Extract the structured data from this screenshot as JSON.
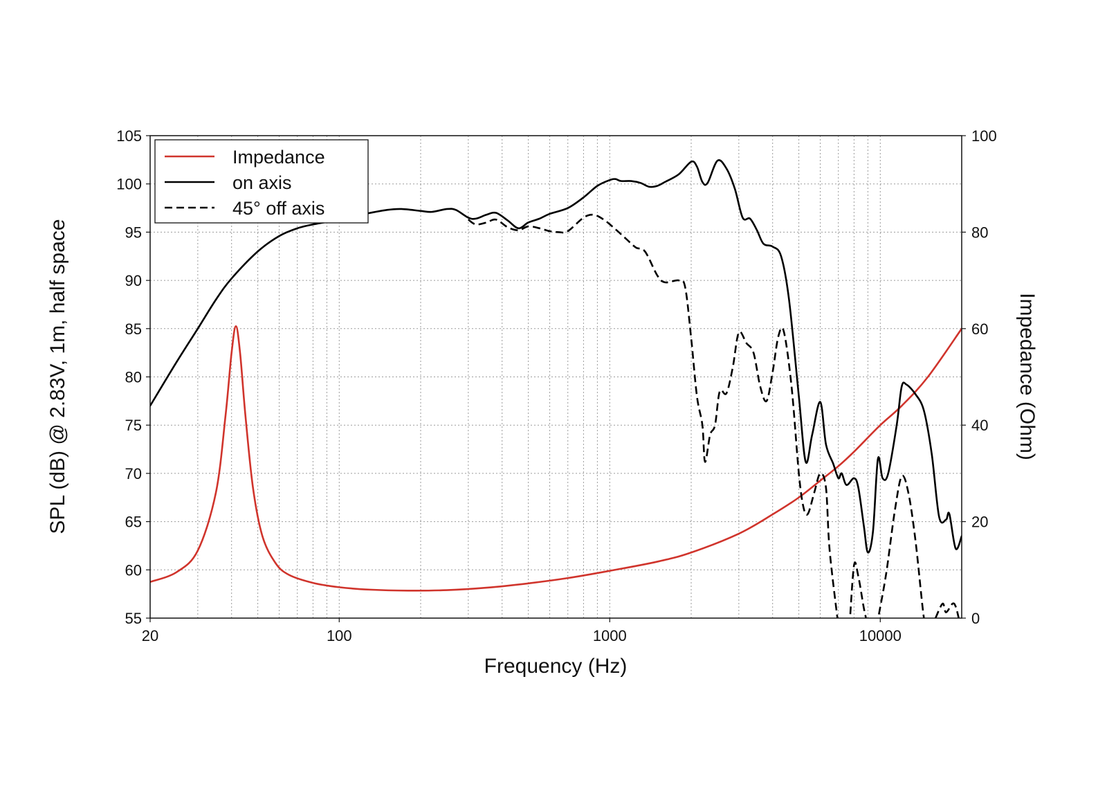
{
  "chart_data": {
    "type": "line",
    "xlabel": "Frequency (Hz)",
    "ylabel": "SPL (dB) @ 2.83V, 1m, half space",
    "y2label": "Impedance (Ohm)",
    "x_scale": "log",
    "xlim": [
      20,
      20000
    ],
    "ylim": [
      55,
      105
    ],
    "y2lim": [
      0,
      100
    ],
    "grid": true,
    "legend_position": "top-left",
    "x_ticks": [
      20,
      100,
      1000,
      10000
    ],
    "x_tick_labels": [
      "20",
      "100",
      "1000",
      "10000"
    ],
    "y_ticks": [
      55,
      60,
      65,
      70,
      75,
      80,
      85,
      90,
      95,
      100,
      105
    ],
    "y_tick_labels": [
      "55",
      "60",
      "65",
      "70",
      "75",
      "80",
      "85",
      "90",
      "95",
      "100",
      "105"
    ],
    "y2_ticks": [
      0,
      20,
      40,
      60,
      80,
      100
    ],
    "y2_tick_labels": [
      "0",
      "20",
      "40",
      "60",
      "80",
      "100"
    ],
    "series": [
      {
        "name": "Impedance",
        "axis": "right",
        "color": "#d0342c",
        "style": "solid",
        "points": [
          [
            20,
            7.5
          ],
          [
            25,
            9.5
          ],
          [
            30,
            14
          ],
          [
            35,
            26
          ],
          [
            38,
            42
          ],
          [
            40,
            55
          ],
          [
            41.5,
            60.5
          ],
          [
            43,
            55
          ],
          [
            45,
            42
          ],
          [
            48,
            27
          ],
          [
            52,
            17
          ],
          [
            58,
            11.5
          ],
          [
            65,
            9
          ],
          [
            80,
            7.3
          ],
          [
            100,
            6.4
          ],
          [
            130,
            5.9
          ],
          [
            180,
            5.7
          ],
          [
            250,
            5.8
          ],
          [
            350,
            6.3
          ],
          [
            500,
            7.2
          ],
          [
            700,
            8.3
          ],
          [
            1000,
            9.8
          ],
          [
            1500,
            11.7
          ],
          [
            2000,
            13.6
          ],
          [
            3000,
            17.5
          ],
          [
            4000,
            21.5
          ],
          [
            5000,
            25
          ],
          [
            6000,
            28.5
          ],
          [
            7000,
            31.5
          ],
          [
            8000,
            34.5
          ],
          [
            10000,
            40
          ],
          [
            12000,
            44
          ],
          [
            15000,
            50
          ],
          [
            20000,
            60
          ]
        ]
      },
      {
        "name": "on axis",
        "axis": "left",
        "color": "#000000",
        "style": "solid",
        "points": [
          [
            20,
            77
          ],
          [
            25,
            81.5
          ],
          [
            30,
            85
          ],
          [
            35,
            88
          ],
          [
            40,
            90.2
          ],
          [
            50,
            93
          ],
          [
            60,
            94.6
          ],
          [
            70,
            95.4
          ],
          [
            80,
            95.8
          ],
          [
            100,
            96.3
          ],
          [
            120,
            96.8
          ],
          [
            150,
            97.3
          ],
          [
            170,
            97.4
          ],
          [
            200,
            97.2
          ],
          [
            220,
            97.1
          ],
          [
            250,
            97.4
          ],
          [
            270,
            97.3
          ],
          [
            300,
            96.5
          ],
          [
            320,
            96.4
          ],
          [
            350,
            96.8
          ],
          [
            380,
            97
          ],
          [
            420,
            96.2
          ],
          [
            460,
            95.4
          ],
          [
            500,
            96
          ],
          [
            550,
            96.4
          ],
          [
            600,
            96.9
          ],
          [
            700,
            97.5
          ],
          [
            800,
            98.6
          ],
          [
            900,
            99.8
          ],
          [
            1000,
            100.4
          ],
          [
            1050,
            100.5
          ],
          [
            1100,
            100.3
          ],
          [
            1200,
            100.3
          ],
          [
            1300,
            100.1
          ],
          [
            1400,
            99.7
          ],
          [
            1500,
            99.8
          ],
          [
            1600,
            100.2
          ],
          [
            1800,
            101
          ],
          [
            2000,
            102.3
          ],
          [
            2100,
            101.8
          ],
          [
            2200,
            100.2
          ],
          [
            2300,
            100.1
          ],
          [
            2500,
            102.4
          ],
          [
            2700,
            101.6
          ],
          [
            2900,
            99.5
          ],
          [
            3100,
            96.5
          ],
          [
            3300,
            96.4
          ],
          [
            3500,
            95.2
          ],
          [
            3700,
            93.8
          ],
          [
            4000,
            93.5
          ],
          [
            4300,
            92.5
          ],
          [
            4600,
            88
          ],
          [
            5000,
            78
          ],
          [
            5300,
            71.2
          ],
          [
            5600,
            74
          ],
          [
            6000,
            77.4
          ],
          [
            6300,
            73
          ],
          [
            6700,
            71
          ],
          [
            7000,
            69.5
          ],
          [
            7200,
            70
          ],
          [
            7500,
            68.8
          ],
          [
            8000,
            69.5
          ],
          [
            8300,
            68.5
          ],
          [
            8700,
            64.5
          ],
          [
            9000,
            61.8
          ],
          [
            9400,
            64
          ],
          [
            9800,
            71.5
          ],
          [
            10200,
            69.5
          ],
          [
            10700,
            70
          ],
          [
            11500,
            75
          ],
          [
            12000,
            79
          ],
          [
            12500,
            79.2
          ],
          [
            13500,
            78.2
          ],
          [
            14500,
            76.5
          ],
          [
            15500,
            72
          ],
          [
            16500,
            65.5
          ],
          [
            17500,
            65.2
          ],
          [
            18000,
            65.8
          ],
          [
            19000,
            62.2
          ],
          [
            20000,
            63.5
          ]
        ]
      },
      {
        "name": "45° off axis",
        "axis": "left",
        "color": "#000000",
        "style": "dashed",
        "points": [
          [
            300,
            96.3
          ],
          [
            320,
            95.8
          ],
          [
            350,
            96
          ],
          [
            380,
            96.3
          ],
          [
            420,
            95.5
          ],
          [
            460,
            95.2
          ],
          [
            500,
            95.6
          ],
          [
            550,
            95.4
          ],
          [
            600,
            95.1
          ],
          [
            650,
            95
          ],
          [
            700,
            95.1
          ],
          [
            800,
            96.5
          ],
          [
            870,
            96.8
          ],
          [
            950,
            96.3
          ],
          [
            1050,
            95.3
          ],
          [
            1150,
            94.3
          ],
          [
            1250,
            93.4
          ],
          [
            1350,
            93
          ],
          [
            1500,
            90.5
          ],
          [
            1600,
            89.8
          ],
          [
            1800,
            90
          ],
          [
            1900,
            89.3
          ],
          [
            2000,
            84
          ],
          [
            2100,
            78
          ],
          [
            2200,
            75
          ],
          [
            2250,
            71.2
          ],
          [
            2350,
            74
          ],
          [
            2450,
            75
          ],
          [
            2550,
            78.5
          ],
          [
            2700,
            78.3
          ],
          [
            2850,
            81
          ],
          [
            3000,
            84.6
          ],
          [
            3200,
            83.5
          ],
          [
            3400,
            82.5
          ],
          [
            3600,
            79
          ],
          [
            3800,
            77.5
          ],
          [
            4000,
            80.5
          ],
          [
            4200,
            84.2
          ],
          [
            4400,
            84.7
          ],
          [
            4700,
            79
          ],
          [
            5000,
            70
          ],
          [
            5200,
            66.5
          ],
          [
            5400,
            65.8
          ],
          [
            5700,
            68
          ],
          [
            6000,
            70
          ],
          [
            6300,
            68.5
          ],
          [
            6500,
            62
          ],
          [
            7000,
            54.2
          ]
        ]
      },
      {
        "name": "45° off axis",
        "axis": "left",
        "color": "#000000",
        "style": "dashed",
        "points": [
          [
            7700,
            54.2
          ],
          [
            8000,
            60.5
          ],
          [
            8300,
            59.3
          ],
          [
            8700,
            56
          ],
          [
            9000,
            54.2
          ]
        ]
      },
      {
        "name": "45° off axis",
        "axis": "left",
        "color": "#000000",
        "style": "dashed",
        "points": [
          [
            9700,
            54.2
          ],
          [
            10500,
            59.5
          ],
          [
            11300,
            66
          ],
          [
            12000,
            69.7
          ],
          [
            12700,
            68
          ],
          [
            13500,
            63
          ],
          [
            14500,
            55
          ],
          [
            15000,
            54.2
          ]
        ]
      },
      {
        "name": "45° off axis",
        "axis": "left",
        "color": "#000000",
        "style": "dashed",
        "points": [
          [
            16000,
            55
          ],
          [
            17000,
            56.5
          ],
          [
            17500,
            55.6
          ],
          [
            18500,
            56.5
          ],
          [
            19000,
            56.2
          ],
          [
            19500,
            55
          ]
        ]
      }
    ],
    "legend": [
      {
        "label": "Impedance",
        "color": "#d0342c",
        "style": "solid"
      },
      {
        "label": "on axis",
        "color": "#000000",
        "style": "solid"
      },
      {
        "label": "45° off axis",
        "color": "#000000",
        "style": "dashed"
      }
    ]
  }
}
